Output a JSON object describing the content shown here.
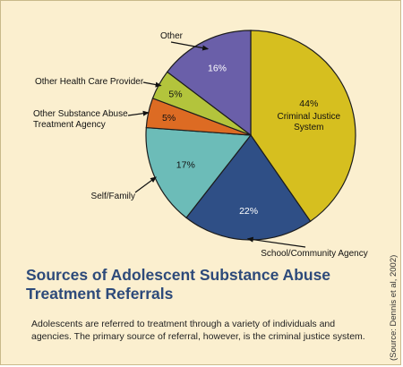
{
  "chart_data": {
    "type": "pie",
    "title_lines": [
      "Sources of Adolescent Substance Abuse",
      "Treatment Referrals"
    ],
    "slices": [
      {
        "label": "Criminal Justice System",
        "label_lines": [
          "Criminal Justice",
          "System"
        ],
        "value": 44,
        "value_text": "44%",
        "color": "#d6bf1f",
        "text_color": "#111111"
      },
      {
        "label": "School/Community Agency",
        "value": 22,
        "value_text": "22%",
        "color": "#2f4f86",
        "text_color": "#ffffff"
      },
      {
        "label": "Self/Family",
        "value": 17,
        "value_text": "17%",
        "color": "#6cbcb8",
        "text_color": "#111111"
      },
      {
        "label": "Other Substance Abuse Treatment Agency",
        "label_lines": [
          "Other Substance Abuse",
          "Treatment Agency"
        ],
        "value": 5,
        "value_text": "5%",
        "color": "#dd6b23",
        "text_color": "#111111"
      },
      {
        "label": "Other Health Care Provider",
        "value": 5,
        "value_text": "5%",
        "color": "#b3c43c",
        "text_color": "#111111"
      },
      {
        "label": "Other",
        "value": 16,
        "value_text": "16%",
        "color": "#6a5fa9",
        "text_color": "#ffffff"
      }
    ]
  },
  "caption": "Adolescents are referred to treatment through a variety of individuals and agencies. The primary source of referral, however, is the criminal justice system.",
  "source": "(Source: Dennis et al, 2002)",
  "colors": {
    "panel_bg": "#fbefcf",
    "title": "#2d4a7a",
    "edge": "#1c1c1c"
  }
}
